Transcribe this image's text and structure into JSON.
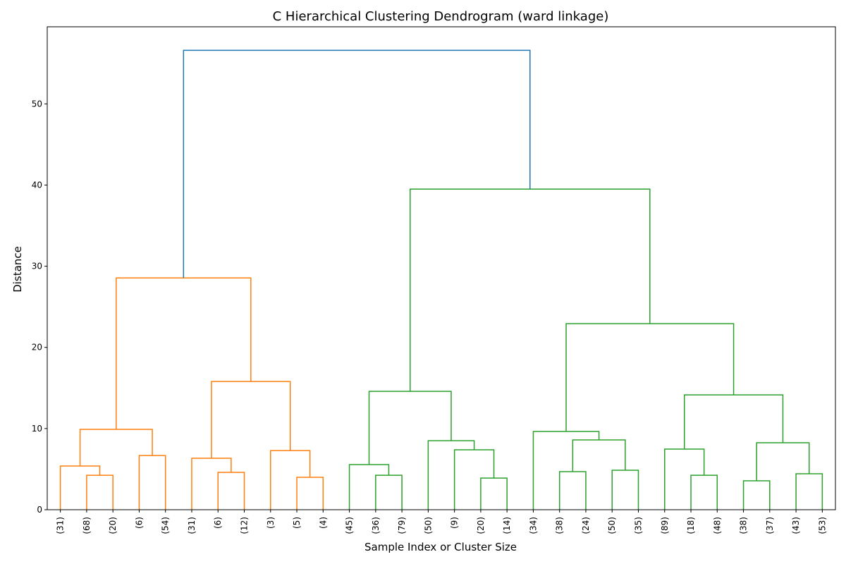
{
  "chart_data": {
    "type": "dendrogram",
    "title": "C Hierarchical Clustering Dendrogram (ward linkage)",
    "x_label": "Sample Index or Cluster Size",
    "y_label": "Distance",
    "leaf_labels": [
      "(31)",
      "(68)",
      "(20)",
      "(6)",
      "(54)",
      "(31)",
      "(6)",
      "(12)",
      "(3)",
      "(5)",
      "(4)",
      "(45)",
      "(36)",
      "(79)",
      "(50)",
      "(9)",
      "(20)",
      "(14)",
      "(34)",
      "(38)",
      "(24)",
      "(50)",
      "(35)",
      "(89)",
      "(18)",
      "(48)",
      "(38)",
      "(37)",
      "(43)",
      "(53)"
    ],
    "merges": [
      {
        "children": [
          1,
          2
        ],
        "height": 4.25,
        "color": "#ff7f0e"
      },
      {
        "children": [
          0,
          30
        ],
        "height": 5.38,
        "color": "#ff7f0e"
      },
      {
        "children": [
          3,
          4
        ],
        "height": 6.68,
        "color": "#ff7f0e"
      },
      {
        "children": [
          31,
          32
        ],
        "height": 9.9,
        "color": "#ff7f0e"
      },
      {
        "children": [
          6,
          7
        ],
        "height": 4.6,
        "color": "#ff7f0e"
      },
      {
        "children": [
          5,
          34
        ],
        "height": 6.34,
        "color": "#ff7f0e"
      },
      {
        "children": [
          9,
          10
        ],
        "height": 4.0,
        "color": "#ff7f0e"
      },
      {
        "children": [
          8,
          36
        ],
        "height": 7.29,
        "color": "#ff7f0e"
      },
      {
        "children": [
          35,
          37
        ],
        "height": 15.8,
        "color": "#ff7f0e"
      },
      {
        "children": [
          33,
          38
        ],
        "height": 28.56,
        "color": "#ff7f0e"
      },
      {
        "children": [
          12,
          13
        ],
        "height": 4.25,
        "color": "#2ca02c"
      },
      {
        "children": [
          11,
          40
        ],
        "height": 5.56,
        "color": "#2ca02c"
      },
      {
        "children": [
          16,
          17
        ],
        "height": 3.9,
        "color": "#2ca02c"
      },
      {
        "children": [
          15,
          42
        ],
        "height": 7.38,
        "color": "#2ca02c"
      },
      {
        "children": [
          14,
          43
        ],
        "height": 8.5,
        "color": "#2ca02c"
      },
      {
        "children": [
          41,
          44
        ],
        "height": 14.58,
        "color": "#2ca02c"
      },
      {
        "children": [
          19,
          20
        ],
        "height": 4.69,
        "color": "#2ca02c"
      },
      {
        "children": [
          21,
          22
        ],
        "height": 4.86,
        "color": "#2ca02c"
      },
      {
        "children": [
          46,
          47
        ],
        "height": 8.6,
        "color": "#2ca02c"
      },
      {
        "children": [
          18,
          48
        ],
        "height": 9.64,
        "color": "#2ca02c"
      },
      {
        "children": [
          24,
          25
        ],
        "height": 4.25,
        "color": "#2ca02c"
      },
      {
        "children": [
          23,
          50
        ],
        "height": 7.47,
        "color": "#2ca02c"
      },
      {
        "children": [
          26,
          27
        ],
        "height": 3.56,
        "color": "#2ca02c"
      },
      {
        "children": [
          28,
          29
        ],
        "height": 4.43,
        "color": "#2ca02c"
      },
      {
        "children": [
          52,
          53
        ],
        "height": 8.25,
        "color": "#2ca02c"
      },
      {
        "children": [
          51,
          54
        ],
        "height": 14.15,
        "color": "#2ca02c"
      },
      {
        "children": [
          49,
          55
        ],
        "height": 22.92,
        "color": "#2ca02c"
      },
      {
        "children": [
          45,
          56
        ],
        "height": 39.5,
        "color": "#2ca02c"
      },
      {
        "children": [
          39,
          57
        ],
        "height": 56.6,
        "color": "#1f77b4"
      }
    ],
    "ylim": [
      0,
      59.5
    ],
    "yticks": [
      0,
      10,
      20,
      30,
      40,
      50
    ]
  }
}
